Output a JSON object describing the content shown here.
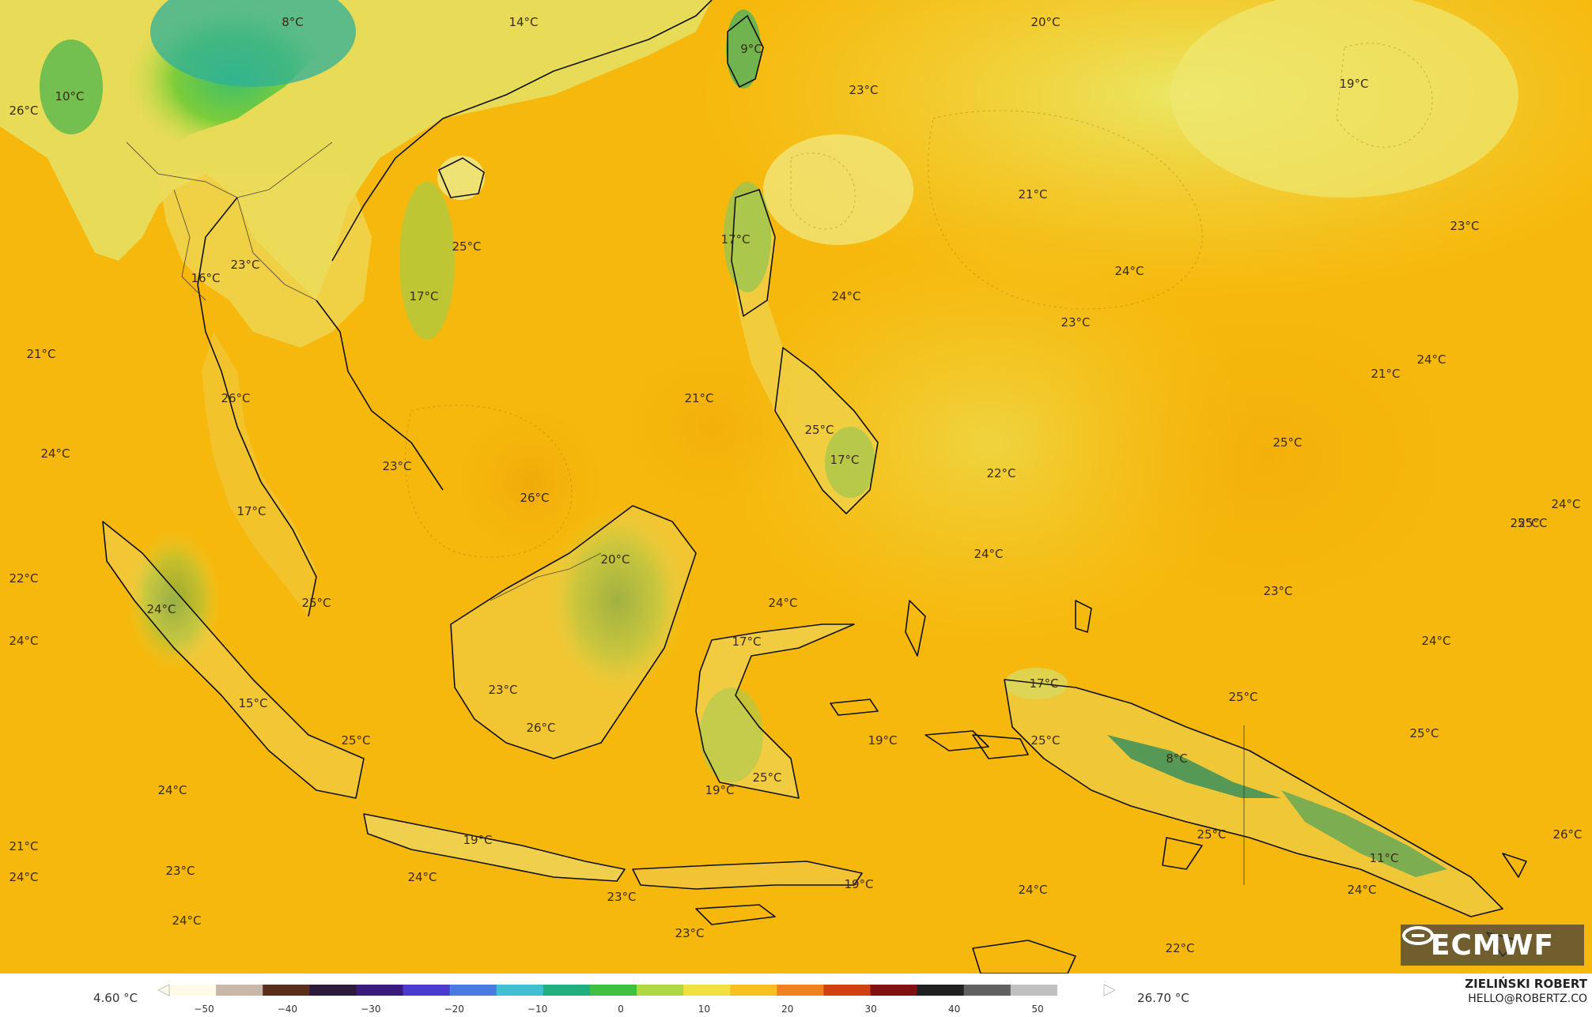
{
  "map": {
    "background_color": "#f6b80c",
    "labels": [
      {
        "text": "8°C"
      },
      {
        "text": "14°C"
      },
      {
        "text": "20°C"
      },
      {
        "text": "9°C"
      },
      {
        "text": "19°C"
      },
      {
        "text": "10°C"
      },
      {
        "text": "26°C"
      },
      {
        "text": "23°C"
      },
      {
        "text": "21°C"
      },
      {
        "text": "25°C"
      },
      {
        "text": "23°C"
      },
      {
        "text": "17°C"
      },
      {
        "text": "16°C"
      },
      {
        "text": "17°C"
      },
      {
        "text": "24°C"
      },
      {
        "text": "23°C"
      },
      {
        "text": "24°C"
      },
      {
        "text": "21°C"
      },
      {
        "text": "24°C"
      },
      {
        "text": "23°C"
      },
      {
        "text": "21°C"
      },
      {
        "text": "26°C"
      },
      {
        "text": "21°C"
      },
      {
        "text": "25°C"
      },
      {
        "text": "24°C"
      },
      {
        "text": "23°C"
      },
      {
        "text": "25°C"
      },
      {
        "text": "17°C"
      },
      {
        "text": "22°C"
      },
      {
        "text": "25°C"
      },
      {
        "text": "26°C"
      },
      {
        "text": "17°C"
      },
      {
        "text": "24°C"
      },
      {
        "text": "24°C"
      },
      {
        "text": "25°C"
      },
      {
        "text": "22°C"
      },
      {
        "text": "20°C"
      },
      {
        "text": "24°C"
      },
      {
        "text": "23°C"
      },
      {
        "text": "25°C"
      },
      {
        "text": "24°C"
      },
      {
        "text": "24°C"
      },
      {
        "text": "17°C"
      },
      {
        "text": "24°C"
      },
      {
        "text": "25°C"
      },
      {
        "text": "15°C"
      },
      {
        "text": "23°C"
      },
      {
        "text": "17°C"
      },
      {
        "text": "26°C"
      },
      {
        "text": "25°C"
      },
      {
        "text": "19°C"
      },
      {
        "text": "25°C"
      },
      {
        "text": "8°C"
      },
      {
        "text": "25°C"
      },
      {
        "text": "24°C"
      },
      {
        "text": "19°C"
      },
      {
        "text": "25°C"
      },
      {
        "text": "21°C"
      },
      {
        "text": "19°C"
      },
      {
        "text": "25°C"
      },
      {
        "text": "26°C"
      },
      {
        "text": "24°C"
      },
      {
        "text": "23°C"
      },
      {
        "text": "11°C"
      },
      {
        "text": "24°C"
      },
      {
        "text": "24°C"
      },
      {
        "text": "19°C"
      },
      {
        "text": "24°C"
      },
      {
        "text": "23°C"
      },
      {
        "text": "23°C"
      },
      {
        "text": "24°C"
      },
      {
        "text": "22°C"
      }
    ]
  },
  "logo": {
    "text": "ECMWF"
  },
  "legend": {
    "min_label": "4.60 °C",
    "max_label": "26.70 °C",
    "ticks": [
      "−50",
      "−40",
      "−30",
      "−20",
      "−10",
      "0",
      "10",
      "20",
      "30",
      "40",
      "50"
    ],
    "colors": [
      "#fffbe8",
      "#c9b8a8",
      "#5a2f1a",
      "#2b1a3a",
      "#3a1a7a",
      "#4a3ad0",
      "#4a7ae0",
      "#40c0d0",
      "#20b080",
      "#40c040",
      "#b0d840",
      "#f0e040",
      "#f8c020",
      "#f08020",
      "#d04010",
      "#801010",
      "#202020",
      "#606060",
      "#c0c0c0",
      "#ffffff"
    ]
  },
  "credit": {
    "name": "ZIELIŃSKI ROBERT",
    "email": "HELLO@ROBERTZ.CO"
  }
}
